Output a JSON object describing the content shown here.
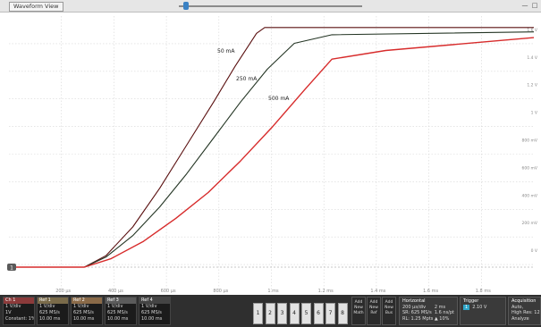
{
  "window": {
    "title": "Waveform View",
    "controls": [
      "—",
      "□"
    ]
  },
  "plot": {
    "x_ticks": [
      "200 µs",
      "400 µs",
      "600 µs",
      "800 µs",
      "1 ms",
      "1.2 ms",
      "1.4 ms",
      "1.6 ms",
      "1.8 ms"
    ],
    "y_ticks": [
      "1.6 V",
      "1.4 V",
      "1.2 V",
      "1 V",
      "800 mV",
      "600 mV",
      "400 mV",
      "200 mV",
      "0 V"
    ],
    "channel_marker": "1",
    "labels": [
      "50 mA",
      "250 mA",
      "500 mA"
    ],
    "colors": {
      "trace_50": "#5a1010",
      "trace_250": "#243524",
      "trace_500": "#d72b2b",
      "grid": "#d6d6d6"
    }
  },
  "chart_data": {
    "type": "line",
    "title": "",
    "xlabel": "",
    "ylabel": "",
    "xlim": [
      0,
      1.95
    ],
    "ylim": [
      0,
      1.75
    ],
    "x_unit": "ms",
    "y_unit": "V",
    "grid": true,
    "series": [
      {
        "name": "50 mA",
        "x": [
          0,
          0.28,
          0.36,
          0.46,
          0.56,
          0.66,
          0.76,
          0.84,
          0.92,
          0.95,
          1.95
        ],
        "y": [
          0,
          0,
          0.08,
          0.28,
          0.55,
          0.85,
          1.15,
          1.4,
          1.63,
          1.67,
          1.67
        ]
      },
      {
        "name": "250 mA",
        "x": [
          0,
          0.28,
          0.36,
          0.46,
          0.56,
          0.66,
          0.76,
          0.86,
          0.96,
          1.06,
          1.2,
          1.95
        ],
        "y": [
          0,
          0,
          0.07,
          0.22,
          0.42,
          0.65,
          0.9,
          1.15,
          1.38,
          1.56,
          1.62,
          1.64
        ]
      },
      {
        "name": "500 mA",
        "x": [
          0,
          0.28,
          0.38,
          0.5,
          0.62,
          0.74,
          0.86,
          0.98,
          1.1,
          1.2,
          1.4,
          1.95
        ],
        "y": [
          0,
          0,
          0.06,
          0.18,
          0.34,
          0.52,
          0.74,
          0.98,
          1.24,
          1.45,
          1.51,
          1.6
        ]
      }
    ]
  },
  "bottombar": {
    "channels": [
      {
        "tag": "Ch 1",
        "color": "#8b3a3a",
        "lines": [
          "1 V/div",
          "1V",
          "Constant: 1%"
        ]
      },
      {
        "tag": "Ref 1",
        "color": "#7a6b4a",
        "lines": [
          "1 V/div",
          "625 MS/s",
          "10.00 ms"
        ]
      },
      {
        "tag": "Ref 2",
        "color": "#8a6a48",
        "lines": [
          "1 V/div",
          "625 MS/s",
          "10.00 ms"
        ]
      },
      {
        "tag": "Ref 3",
        "color": "#5b5b5b",
        "lines": [
          "1 V/div",
          "625 MS/s",
          "10.00 ms"
        ]
      },
      {
        "tag": "Ref 4",
        "color": "#444",
        "lines": [
          "1 V/div",
          "625 MS/s",
          "10.00 ms"
        ]
      }
    ],
    "numbered_buttons": [
      "1",
      "2",
      "3",
      "4",
      "5",
      "6",
      "7",
      "8"
    ],
    "small_buttons": [
      [
        "Add",
        "New",
        "Math"
      ],
      [
        "Add",
        "New",
        "Ref"
      ],
      [
        "Add",
        "New",
        "Bus"
      ]
    ],
    "horizontal": {
      "title": "Horizontal",
      "lines": [
        "200 µs/div",
        "SR: 625 MS/s",
        "RL: 1.25 Mpts"
      ],
      "right_lines": [
        "2 ms",
        "1.6 ns/pt",
        "▲ 10%"
      ]
    },
    "trigger": {
      "title": "Trigger",
      "chip": "1",
      "level": "2.10 V"
    },
    "acquisition": {
      "title": "Acquisition",
      "lines": [
        "Auto,",
        "High Res: 12",
        "Analyze"
      ]
    }
  }
}
